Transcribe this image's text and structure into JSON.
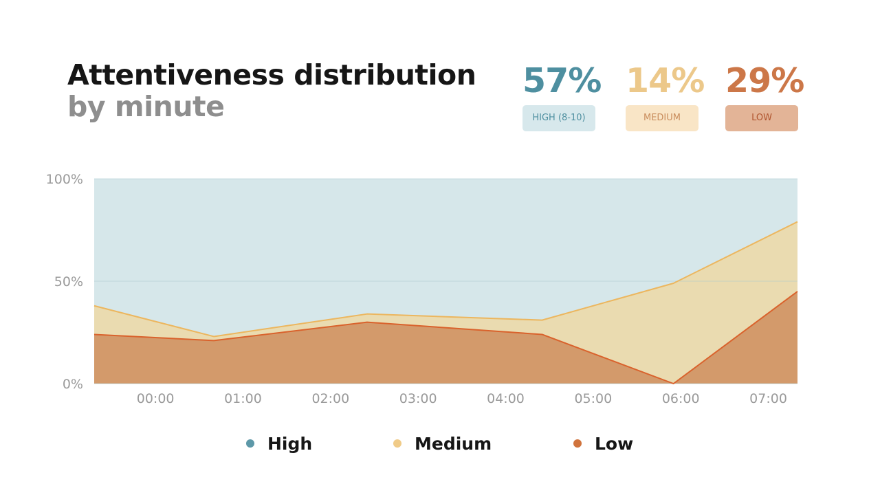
{
  "header": {
    "title": "Attentiveness distribution",
    "subtitle": "by minute"
  },
  "stats": [
    {
      "value": "57%",
      "label": "HIGH (8-10)",
      "color": "#4e8fa0",
      "badge_bg": "#d7e8ec",
      "badge_text": "#4e8fa0"
    },
    {
      "value": "14%",
      "label": "MEDIUM",
      "color": "#ecc88a",
      "badge_bg": "#f9e5c6",
      "badge_text": "#c98d5c"
    },
    {
      "value": "29%",
      "label": "LOW",
      "color": "#cc7748",
      "badge_bg": "#e3b497",
      "badge_text": "#b0552f"
    }
  ],
  "chart_data": {
    "type": "area",
    "stacked": true,
    "x": [
      "-00:42",
      "00:40",
      "02:25",
      "04:25",
      "05:55",
      "07:20"
    ],
    "series": [
      {
        "name": "Low",
        "color": "#d39a6b",
        "line": "#d9622c",
        "values": [
          24,
          21,
          30,
          24,
          0,
          45
        ]
      },
      {
        "name": "Medium",
        "color": "#eadbb0",
        "line": "#ecb65e",
        "values": [
          14,
          2,
          4,
          7,
          49,
          34
        ]
      },
      {
        "name": "High",
        "color": "#d6e7ea",
        "line": "#b9d3da",
        "values": [
          62,
          77,
          66,
          69,
          51,
          21
        ]
      }
    ],
    "x_ticks": [
      "00:00",
      "01:00",
      "02:00",
      "03:00",
      "04:00",
      "05:00",
      "06:00",
      "07:00"
    ],
    "y_ticks": [
      "0%",
      "50%",
      "100%"
    ],
    "ylim": [
      0,
      100
    ],
    "legend": [
      {
        "label": "High",
        "color": "#5d98a8"
      },
      {
        "label": "Medium",
        "color": "#f0cb88"
      },
      {
        "label": "Low",
        "color": "#d0733c"
      }
    ]
  }
}
